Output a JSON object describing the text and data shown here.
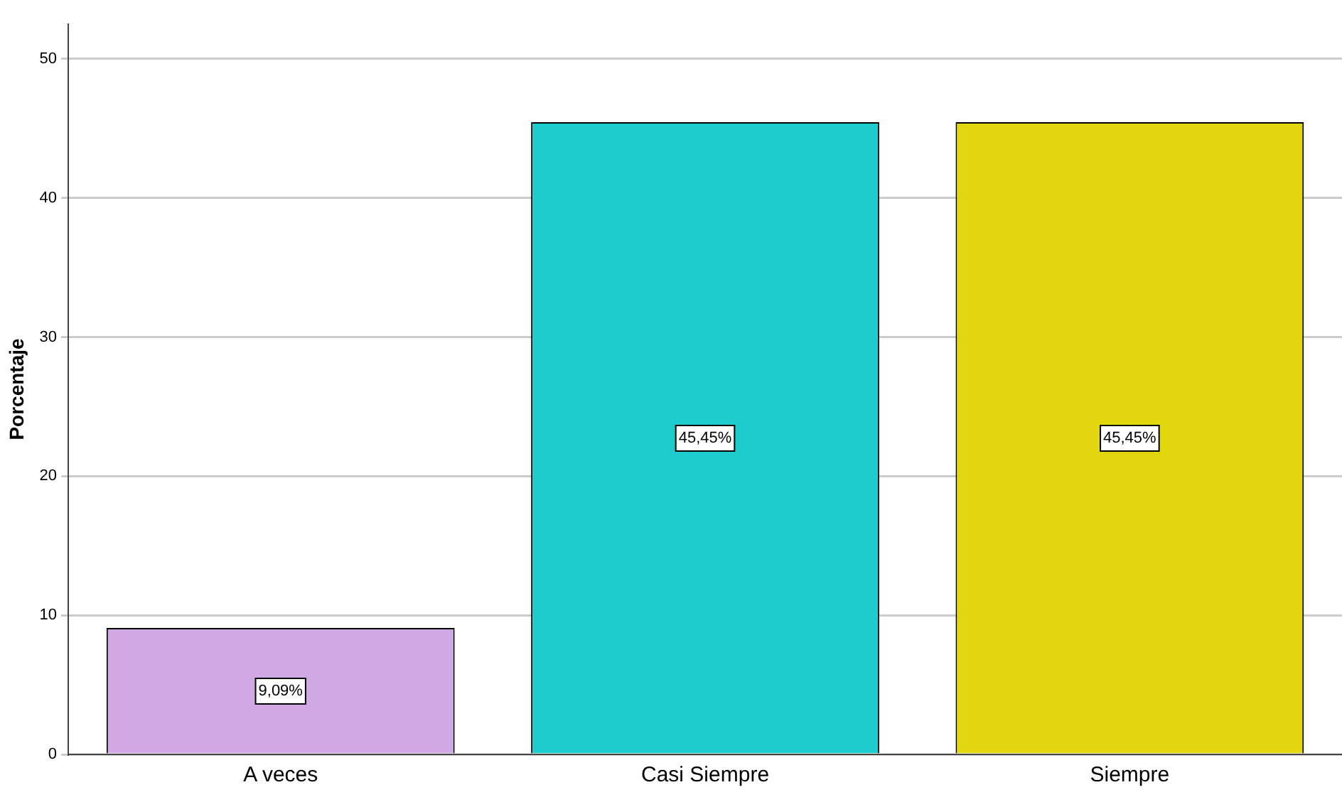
{
  "chart_data": {
    "type": "bar",
    "ylabel": "Porcentaje",
    "categories": [
      "A veces",
      "Casi Siempre",
      "Siempre"
    ],
    "values": [
      9.09,
      45.45,
      45.45
    ],
    "colors": [
      "#d0a9e4",
      "#1dcdcd",
      "#e2d60f"
    ],
    "value_labels": [
      "9,09%",
      "45,45%",
      "45,45%"
    ],
    "ylim": [
      0,
      52.5
    ],
    "yticks": [
      0,
      10,
      20,
      30,
      40,
      50
    ],
    "grid": "y",
    "legend": false
  }
}
